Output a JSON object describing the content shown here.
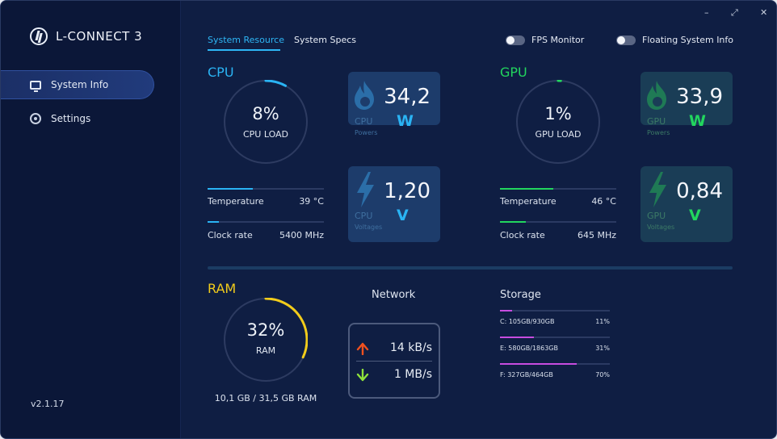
{
  "app": {
    "title": "L-CONNECT 3",
    "version": "v2.1.17"
  },
  "window_controls": {
    "minimize": "–",
    "maximize": "⤢",
    "close": "✕"
  },
  "sidebar": {
    "items": [
      {
        "label": "System Info"
      },
      {
        "label": "Settings"
      }
    ]
  },
  "tabs": [
    {
      "label": "System Resource"
    },
    {
      "label": "System Specs"
    }
  ],
  "toggles": {
    "fps": "FPS Monitor",
    "floating": "Floating System Info"
  },
  "cpu": {
    "label": "CPU",
    "load_value": "8%",
    "load_label": "CPU LOAD",
    "load_fraction": 0.08,
    "temp_label": "Temperature",
    "temp_value": "39 °C",
    "temp_fraction": 0.39,
    "clock_label": "Clock rate",
    "clock_value": "5400 MHz",
    "clock_fraction": 0.1,
    "power_value": "34,2",
    "power_unit": "W",
    "power_sub": "CPU",
    "power_sub2": "Powers",
    "volt_value": "1,20",
    "volt_unit": "V",
    "volt_sub": "CPU",
    "volt_sub2": "Voltages"
  },
  "gpu": {
    "label": "GPU",
    "load_value": "1%",
    "load_label": "GPU LOAD",
    "load_fraction": 0.01,
    "temp_label": "Temperature",
    "temp_value": "46 °C",
    "temp_fraction": 0.46,
    "clock_label": "Clock rate",
    "clock_value": "645 MHz",
    "clock_fraction": 0.22,
    "power_value": "33,9",
    "power_unit": "W",
    "power_sub": "GPU",
    "power_sub2": "Powers",
    "volt_value": "0,84",
    "volt_unit": "V",
    "volt_sub": "GPU",
    "volt_sub2": "Voltages"
  },
  "ram": {
    "label": "RAM",
    "load_value": "32%",
    "load_label": "RAM",
    "load_fraction": 0.32,
    "usage": "10,1 GB / 31,5 GB RAM"
  },
  "network": {
    "title": "Network",
    "upload": "14 kB/s",
    "download": "1 MB/s"
  },
  "storage": {
    "title": "Storage",
    "drives": [
      {
        "name": "C: 105GB/930GB",
        "percent": "11%",
        "fraction": 0.11
      },
      {
        "name": "E: 580GB/1863GB",
        "percent": "31%",
        "fraction": 0.31
      },
      {
        "name": "F: 327GB/464GB",
        "percent": "70%",
        "fraction": 0.7
      }
    ]
  },
  "colors": {
    "cpu": "#2ab4f4",
    "gpu": "#22d65e",
    "ram": "#f2cc1b",
    "storage": "#c74ce0",
    "up_arrow": "#f0511f",
    "down_arrow": "#8ee23b",
    "gpu_card": "#1a3d56"
  }
}
